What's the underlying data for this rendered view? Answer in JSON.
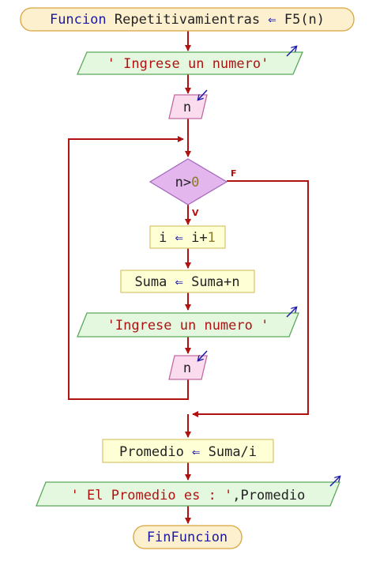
{
  "diagram": {
    "start": {
      "keyword": "Funcion",
      "name": "Repetitivamientras",
      "arrow": "⇐",
      "call": "F5(n)"
    },
    "output1": {
      "text": "' Ingrese un numero'"
    },
    "input1": {
      "text": "n"
    },
    "condition": {
      "var": "n",
      "op": ">",
      "value": "0",
      "false_label": "F",
      "true_label": "V"
    },
    "assign1": {
      "lhs": "i",
      "arrow": "⇐",
      "rhs_var": "i",
      "rhs_op": "+",
      "rhs_num": "1"
    },
    "assign2": {
      "lhs": "Suma",
      "arrow": "⇐",
      "rhs": "Suma+n"
    },
    "output2": {
      "text": "'Ingrese un numero '"
    },
    "input2": {
      "text": "n"
    },
    "assign3": {
      "lhs": "Promedio",
      "arrow": "⇐",
      "rhs": "Suma/i"
    },
    "output3": {
      "string": "' El Promedio es : '",
      "rest": ",Promedio"
    },
    "end": {
      "keyword": "FinFuncion"
    }
  },
  "colors": {
    "arrow": "#b01212",
    "terminal_fill": "#fdf0cf",
    "terminal_stroke": "#d9a53c",
    "io_fill": "#e4f8e0",
    "io_stroke": "#5aa85a",
    "input_fill": "#fbdcef",
    "input_stroke": "#c26aa0",
    "decision_fill": "#e3b7ee",
    "decision_stroke": "#a86abf",
    "process_fill": "#ffffd6",
    "process_stroke": "#d8c874",
    "io_marker": "#1a1aa6"
  }
}
